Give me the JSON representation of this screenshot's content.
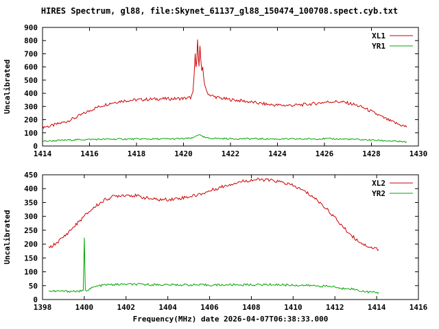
{
  "title": "HIRES Spectrum, gl88, file:Skynet_61137_gl88_150474_100708.spect.cyb.txt",
  "xlabel": "Frequency(MHz) date 2026-04-07T06:38:33.000",
  "chart_data": [
    {
      "type": "line",
      "ylabel": "Uncalibrated",
      "xlim": [
        1414,
        1430
      ],
      "ylim": [
        0,
        900
      ],
      "xtick_step": 2,
      "ytick_step": 100,
      "legend_position": "top-right",
      "grid": false,
      "series": [
        {
          "name": "XL1",
          "color": "#cc0000",
          "noise": 12,
          "points": [
            [
              1414.0,
              145
            ],
            [
              1414.3,
              150
            ],
            [
              1414.6,
              165
            ],
            [
              1415.0,
              185
            ],
            [
              1415.4,
              215
            ],
            [
              1415.8,
              250
            ],
            [
              1416.2,
              285
            ],
            [
              1416.6,
              310
            ],
            [
              1417.0,
              330
            ],
            [
              1417.4,
              342
            ],
            [
              1417.8,
              348
            ],
            [
              1418.2,
              352
            ],
            [
              1418.6,
              355
            ],
            [
              1419.0,
              358
            ],
            [
              1419.4,
              358
            ],
            [
              1419.8,
              360
            ],
            [
              1420.1,
              362
            ],
            [
              1420.3,
              368
            ],
            [
              1420.4,
              400
            ],
            [
              1420.45,
              520
            ],
            [
              1420.5,
              700
            ],
            [
              1420.53,
              600
            ],
            [
              1420.57,
              640
            ],
            [
              1420.6,
              820
            ],
            [
              1420.63,
              700
            ],
            [
              1420.66,
              600
            ],
            [
              1420.7,
              760
            ],
            [
              1420.74,
              640
            ],
            [
              1420.78,
              560
            ],
            [
              1420.82,
              600
            ],
            [
              1420.86,
              520
            ],
            [
              1420.9,
              470
            ],
            [
              1420.95,
              430
            ],
            [
              1421.0,
              410
            ],
            [
              1421.1,
              390
            ],
            [
              1421.3,
              375
            ],
            [
              1421.6,
              362
            ],
            [
              1422.0,
              352
            ],
            [
              1422.4,
              345
            ],
            [
              1422.8,
              335
            ],
            [
              1423.2,
              325
            ],
            [
              1423.6,
              315
            ],
            [
              1424.0,
              310
            ],
            [
              1424.4,
              308
            ],
            [
              1424.8,
              310
            ],
            [
              1425.2,
              315
            ],
            [
              1425.6,
              322
            ],
            [
              1426.0,
              332
            ],
            [
              1426.4,
              338
            ],
            [
              1426.8,
              332
            ],
            [
              1427.2,
              318
            ],
            [
              1427.6,
              295
            ],
            [
              1428.0,
              262
            ],
            [
              1428.4,
              225
            ],
            [
              1428.8,
              190
            ],
            [
              1429.2,
              162
            ],
            [
              1429.5,
              145
            ]
          ]
        },
        {
          "name": "YR1",
          "color": "#00a400",
          "noise": 6,
          "points": [
            [
              1414.0,
              35
            ],
            [
              1414.5,
              40
            ],
            [
              1415.0,
              45
            ],
            [
              1416.0,
              50
            ],
            [
              1417.0,
              52
            ],
            [
              1418.0,
              53
            ],
            [
              1419.0,
              53
            ],
            [
              1420.0,
              55
            ],
            [
              1420.4,
              60
            ],
            [
              1420.55,
              80
            ],
            [
              1420.65,
              88
            ],
            [
              1420.8,
              70
            ],
            [
              1421.0,
              60
            ],
            [
              1421.5,
              57
            ],
            [
              1422.0,
              55
            ],
            [
              1423.0,
              55
            ],
            [
              1424.0,
              53
            ],
            [
              1425.0,
              53
            ],
            [
              1426.0,
              55
            ],
            [
              1427.0,
              52
            ],
            [
              1428.0,
              45
            ],
            [
              1428.8,
              38
            ],
            [
              1429.5,
              30
            ]
          ]
        }
      ]
    },
    {
      "type": "line",
      "ylabel": "Uncalibrated",
      "xlim": [
        1398,
        1416
      ],
      "ylim": [
        0,
        450
      ],
      "xtick_step": 2,
      "ytick_step": 50,
      "legend_position": "top-right",
      "grid": false,
      "series": [
        {
          "name": "XL2",
          "color": "#cc0000",
          "noise": 6,
          "points": [
            [
              1398.3,
              185
            ],
            [
              1398.6,
              200
            ],
            [
              1399.0,
              225
            ],
            [
              1399.4,
              255
            ],
            [
              1399.8,
              285
            ],
            [
              1400.2,
              315
            ],
            [
              1400.6,
              340
            ],
            [
              1401.0,
              360
            ],
            [
              1401.4,
              372
            ],
            [
              1401.8,
              377
            ],
            [
              1402.2,
              377
            ],
            [
              1402.6,
              372
            ],
            [
              1403.0,
              366
            ],
            [
              1403.4,
              361
            ],
            [
              1403.8,
              360
            ],
            [
              1404.2,
              362
            ],
            [
              1404.6,
              366
            ],
            [
              1405.0,
              371
            ],
            [
              1405.4,
              377
            ],
            [
              1405.8,
              386
            ],
            [
              1406.2,
              397
            ],
            [
              1406.6,
              407
            ],
            [
              1407.0,
              416
            ],
            [
              1407.4,
              424
            ],
            [
              1407.8,
              429
            ],
            [
              1408.2,
              432
            ],
            [
              1408.6,
              432
            ],
            [
              1409.0,
              429
            ],
            [
              1409.4,
              424
            ],
            [
              1409.8,
              416
            ],
            [
              1410.2,
              404
            ],
            [
              1410.6,
              388
            ],
            [
              1411.0,
              368
            ],
            [
              1411.4,
              342
            ],
            [
              1411.8,
              312
            ],
            [
              1412.2,
              278
            ],
            [
              1412.6,
              245
            ],
            [
              1413.0,
              218
            ],
            [
              1413.4,
              198
            ],
            [
              1413.8,
              186
            ],
            [
              1414.1,
              182
            ]
          ]
        },
        {
          "name": "YR2",
          "color": "#00a400",
          "noise": 4,
          "points": [
            [
              1398.3,
              30
            ],
            [
              1399.0,
              30
            ],
            [
              1399.9,
              30
            ],
            [
              1399.95,
              30
            ],
            [
              1400.0,
              225
            ],
            [
              1400.05,
              32
            ],
            [
              1400.3,
              40
            ],
            [
              1400.6,
              48
            ],
            [
              1401.0,
              53
            ],
            [
              1402.0,
              55
            ],
            [
              1403.0,
              54
            ],
            [
              1404.0,
              53
            ],
            [
              1405.0,
              53
            ],
            [
              1406.0,
              52
            ],
            [
              1407.0,
              53
            ],
            [
              1408.0,
              53
            ],
            [
              1409.0,
              54
            ],
            [
              1410.0,
              52
            ],
            [
              1411.0,
              50
            ],
            [
              1412.0,
              46
            ],
            [
              1412.3,
              38
            ],
            [
              1412.6,
              42
            ],
            [
              1413.0,
              35
            ],
            [
              1413.5,
              28
            ],
            [
              1414.1,
              25
            ]
          ]
        }
      ]
    }
  ]
}
